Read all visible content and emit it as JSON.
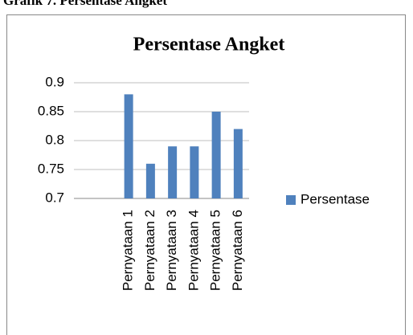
{
  "caption": "Grafik 7. Persentase Angket",
  "chart_data": {
    "type": "bar",
    "title": "Persentase Angket",
    "categories": [
      null,
      null,
      "Pernyataan 1",
      "Pernyataan 2",
      "Pernyataan 3",
      "Pernyataan 4",
      "Pernyataan 5",
      "Pernyataan 6"
    ],
    "series": [
      {
        "name": "Persentase",
        "color": "#4f81bd",
        "values": [
          null,
          null,
          0.88,
          0.76,
          0.79,
          0.79,
          0.85,
          0.82
        ]
      }
    ],
    "ylim": [
      0.7,
      0.9
    ],
    "yticks": [
      0.7,
      0.75,
      0.8,
      0.85,
      0.9
    ],
    "grid": true,
    "legend": "right"
  }
}
